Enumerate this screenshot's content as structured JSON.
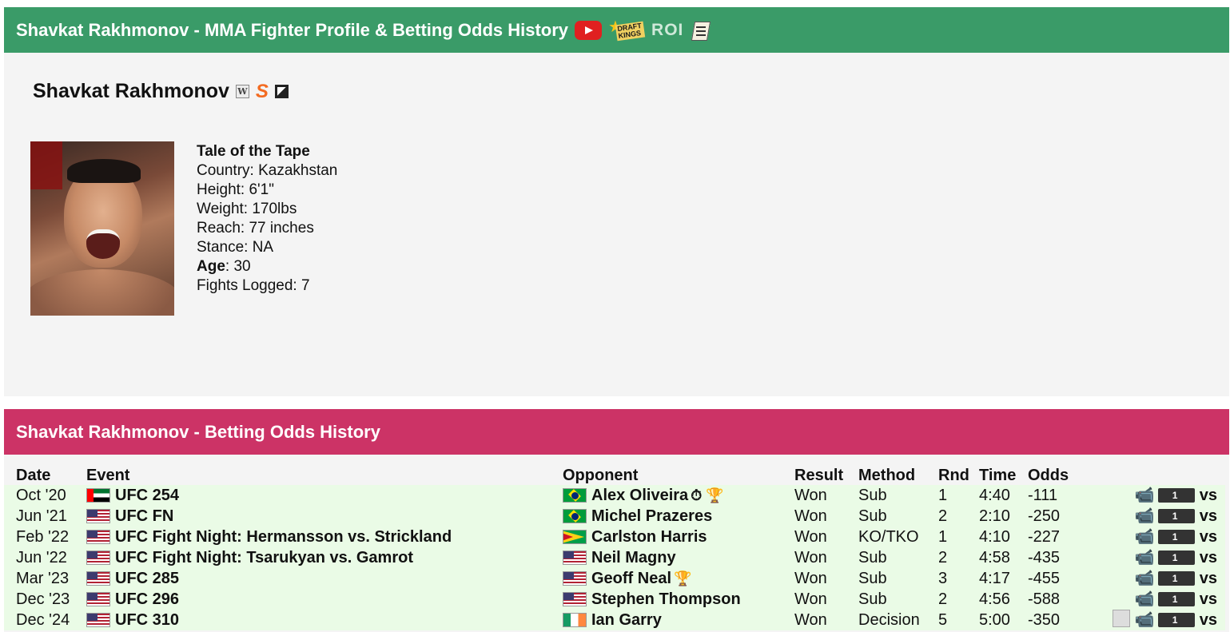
{
  "header": {
    "title": "Shavkat Rakhmonov - MMA Fighter Profile & Betting Odds History",
    "roi_label": "ROI"
  },
  "profile": {
    "name": "Shavkat Rakhmonov",
    "tape_title": "Tale of the Tape",
    "country": "Country: Kazakhstan",
    "height": "Height: 6'1\"",
    "weight": "Weight: 170lbs",
    "reach": "Reach: 77 inches",
    "stance": "Stance: NA",
    "age_label": "Age",
    "age_value": ": 30",
    "fights_logged": "Fights Logged: 7"
  },
  "odds_section": {
    "title": "Shavkat Rakhmonov - Betting Odds History",
    "columns": [
      "Date",
      "Event",
      "Opponent",
      "Result",
      "Method",
      "Rnd",
      "Time",
      "Odds"
    ],
    "vs_label": "vs",
    "rows": [
      {
        "date": "Oct '20",
        "event_flag": "ae",
        "event": "UFC 254",
        "opp_flag": "br",
        "opponent": "Alex Oliveira",
        "extra": "⏱ 🏆",
        "result": "Won",
        "method": "Sub",
        "rnd": "1",
        "time": "4:40",
        "odds": "-111",
        "doc": false
      },
      {
        "date": "Jun '21",
        "event_flag": "us",
        "event": "UFC FN",
        "opp_flag": "br",
        "opponent": "Michel Prazeres",
        "extra": "",
        "result": "Won",
        "method": "Sub",
        "rnd": "2",
        "time": "2:10",
        "odds": "-250",
        "doc": false
      },
      {
        "date": "Feb '22",
        "event_flag": "us",
        "event": "UFC Fight Night: Hermansson vs. Strickland",
        "opp_flag": "gy",
        "opponent": "Carlston Harris",
        "extra": "",
        "result": "Won",
        "method": "KO/TKO",
        "rnd": "1",
        "time": "4:10",
        "odds": "-227",
        "doc": false
      },
      {
        "date": "Jun '22",
        "event_flag": "us",
        "event": "UFC Fight Night: Tsarukyan vs. Gamrot",
        "opp_flag": "us",
        "opponent": "Neil Magny",
        "extra": "",
        "result": "Won",
        "method": "Sub",
        "rnd": "2",
        "time": "4:58",
        "odds": "-435",
        "doc": false
      },
      {
        "date": "Mar '23",
        "event_flag": "us",
        "event": "UFC 285",
        "opp_flag": "us",
        "opponent": "Geoff Neal",
        "extra": "🏆",
        "result": "Won",
        "method": "Sub",
        "rnd": "3",
        "time": "4:17",
        "odds": "-455",
        "doc": false
      },
      {
        "date": "Dec '23",
        "event_flag": "us",
        "event": "UFC 296",
        "opp_flag": "us",
        "opponent": "Stephen Thompson",
        "extra": "",
        "result": "Won",
        "method": "Sub",
        "rnd": "2",
        "time": "4:56",
        "odds": "-588",
        "doc": false
      },
      {
        "date": "Dec '24",
        "event_flag": "us",
        "event": "UFC 310",
        "opp_flag": "ie",
        "opponent": "Ian Garry",
        "extra": "",
        "result": "Won",
        "method": "Decision",
        "rnd": "5",
        "time": "5:00",
        "odds": "-350",
        "doc": true
      }
    ]
  },
  "colors": {
    "header_green": "#3a9b68",
    "header_pink": "#cc3366",
    "row_bg": "#eafbe6"
  }
}
